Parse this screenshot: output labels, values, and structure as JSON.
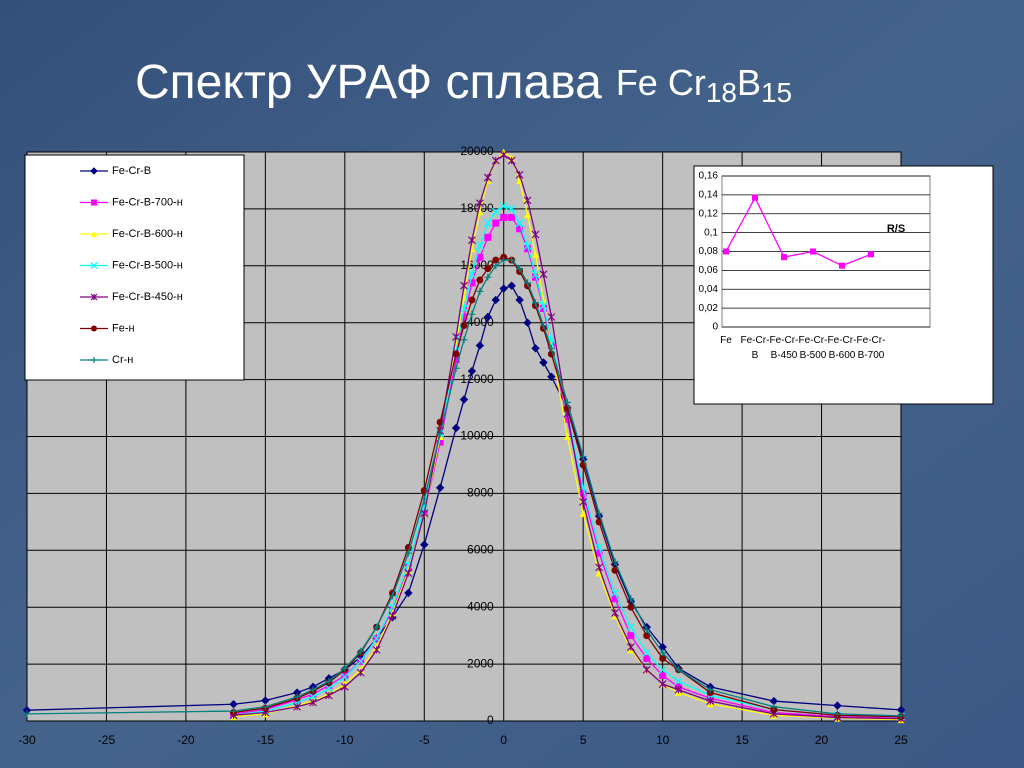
{
  "title": {
    "main": "Спектр УРАФ сплава",
    "formula": [
      {
        "text": "Fe Cr"
      },
      {
        "sub": "18"
      },
      {
        "text": "B"
      },
      {
        "sub": "15"
      }
    ]
  },
  "chart_data": [
    {
      "type": "line",
      "legend": "upper left",
      "grid": true,
      "background": "#c0c0c0",
      "x": [
        -30,
        -17,
        -15,
        -13,
        -12,
        -11,
        -10,
        -9,
        -8,
        -7,
        -6,
        -5,
        -4,
        -3,
        -2.5,
        -2,
        -1.5,
        -1,
        -0.5,
        0,
        0.5,
        1,
        1.5,
        2,
        2.5,
        3,
        4,
        5,
        6,
        7,
        8,
        9,
        10,
        11,
        13,
        17,
        21,
        25
      ],
      "xlim": [
        -30,
        25
      ],
      "xticks": [
        -30,
        -25,
        -20,
        -15,
        -10,
        -5,
        0,
        5,
        10,
        15,
        20,
        25
      ],
      "ylim": [
        0,
        20000
      ],
      "yticks": [
        0,
        2000,
        4000,
        6000,
        8000,
        10000,
        12000,
        14000,
        16000,
        18000,
        20000
      ],
      "series": [
        {
          "name": "Fe-Cr-B",
          "color": "#000080",
          "marker": "diamond",
          "values": [
            380,
            590,
            720,
            1000,
            1200,
            1500,
            1800,
            2250,
            2900,
            3650,
            4500,
            6200,
            8200,
            10300,
            11300,
            12300,
            13200,
            14200,
            14800,
            15200,
            15300,
            14800,
            14000,
            13100,
            12600,
            12100,
            11000,
            9200,
            7200,
            5500,
            4200,
            3300,
            2600,
            1850,
            1200,
            700,
            540,
            390
          ]
        },
        {
          "name": "Fe-Cr-B-700-н",
          "color": "#ff00ff",
          "marker": "square",
          "values": [
            null,
            250,
            400,
            750,
            950,
            1250,
            1600,
            2100,
            2900,
            3900,
            5400,
            7300,
            9800,
            12700,
            14200,
            15400,
            16300,
            17000,
            17500,
            17700,
            17700,
            17300,
            16600,
            15600,
            14500,
            13200,
            10600,
            8000,
            5900,
            4300,
            3000,
            2200,
            1600,
            1200,
            800,
            300,
            150,
            100
          ]
        },
        {
          "name": "Fe-Cr-B-600-н",
          "color": "#ffff00",
          "marker": "triangle",
          "values": [
            null,
            150,
            250,
            550,
            700,
            950,
            1300,
            1800,
            2600,
            3800,
            5300,
            7300,
            10000,
            13200,
            14900,
            16600,
            17900,
            19000,
            19700,
            20000,
            19800,
            19000,
            17800,
            16400,
            14800,
            13200,
            10000,
            7300,
            5200,
            3700,
            2500,
            1800,
            1300,
            1000,
            600,
            200,
            100,
            50
          ]
        },
        {
          "name": "Fe-Cr-B-500-н",
          "color": "#00ffff",
          "marker": "x",
          "values": [
            null,
            200,
            350,
            650,
            850,
            1150,
            1550,
            2100,
            2900,
            4000,
            5500,
            7500,
            10100,
            13000,
            14500,
            15700,
            16700,
            17500,
            17900,
            18100,
            18000,
            17500,
            16700,
            15700,
            14600,
            13400,
            10800,
            8200,
            6100,
            4500,
            3300,
            2400,
            1800,
            1400,
            900,
            400,
            200,
            150
          ]
        },
        {
          "name": "Fe-Cr-B-450-н",
          "color": "#800080",
          "marker": "star",
          "values": [
            null,
            200,
            300,
            500,
            650,
            900,
            1200,
            1700,
            2500,
            3700,
            5200,
            7300,
            10200,
            13500,
            15300,
            16900,
            18200,
            19100,
            19700,
            19900,
            19700,
            19200,
            18300,
            17100,
            15700,
            14200,
            10800,
            7700,
            5400,
            3800,
            2600,
            1800,
            1300,
            1100,
            700,
            250,
            120,
            80
          ]
        },
        {
          "name": "Fe-н",
          "color": "#800000",
          "marker": "circle",
          "values": [
            null,
            300,
            450,
            800,
            1050,
            1350,
            1800,
            2400,
            3300,
            4500,
            6100,
            8100,
            10500,
            12900,
            13900,
            14800,
            15500,
            15900,
            16200,
            16300,
            16200,
            15800,
            15300,
            14600,
            13800,
            12900,
            11000,
            9000,
            7000,
            5300,
            4000,
            3000,
            2200,
            1800,
            1000,
            400,
            200,
            150
          ]
        },
        {
          "name": "Cr-н",
          "color": "#008080",
          "marker": "plus",
          "values": [
            250,
            350,
            500,
            850,
            1100,
            1400,
            1850,
            2450,
            3300,
            4400,
            5900,
            7800,
            10100,
            12400,
            13400,
            14300,
            15100,
            15600,
            16000,
            16200,
            16200,
            15900,
            15400,
            14700,
            13900,
            13100,
            11200,
            9300,
            7300,
            5600,
            4300,
            3200,
            2400,
            1800,
            1100,
            500,
            250,
            180
          ]
        }
      ]
    },
    {
      "type": "line",
      "grid": true,
      "categories": [
        "Fe",
        "Fe-Cr-B",
        "Fe-Cr-B-450",
        "Fe-Cr-B-500",
        "Fe-Cr-B-600",
        "Fe-Cr-B-700"
      ],
      "ylim": [
        0,
        0.16
      ],
      "yticks": [
        0,
        {
          "value": 0.02,
          "label": "0,02"
        },
        {
          "value": 0.04,
          "label": "0,04"
        },
        {
          "value": 0.06,
          "label": "0,06"
        },
        {
          "value": 0.08,
          "label": "0,08"
        },
        {
          "value": 0.1,
          "label": "0,1"
        },
        {
          "value": 0.12,
          "label": "0,12"
        },
        {
          "value": 0.14,
          "label": "0,14"
        },
        {
          "value": 0.16,
          "label": "0,16"
        }
      ],
      "series": [
        {
          "name": "R/S",
          "color": "#ff00ff",
          "marker": "square",
          "values": [
            0.08,
            0.137,
            0.074,
            0.08,
            0.065,
            0.077
          ]
        }
      ]
    }
  ]
}
